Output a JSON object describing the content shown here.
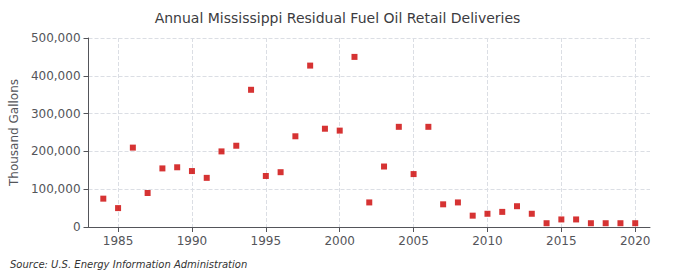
{
  "chart_data": {
    "type": "scatter",
    "title": "Annual Mississippi Residual Fuel Oil Retail Deliveries",
    "ylabel": "Thousand Gallons",
    "annotation": "Source: U.S. Energy Information Administration",
    "x": [
      1984,
      1985,
      1986,
      1987,
      1988,
      1989,
      1990,
      1991,
      1992,
      1993,
      1994,
      1995,
      1996,
      1997,
      1998,
      1999,
      2000,
      2001,
      2002,
      2003,
      2004,
      2005,
      2006,
      2007,
      2008,
      2009,
      2010,
      2011,
      2012,
      2013,
      2014,
      2015,
      2016,
      2017,
      2018,
      2019,
      2020
    ],
    "values": [
      75000,
      50000,
      210000,
      90000,
      155000,
      158000,
      148000,
      130000,
      200000,
      215000,
      363000,
      135000,
      145000,
      240000,
      427000,
      260000,
      255000,
      450000,
      65000,
      160000,
      265000,
      140000,
      265000,
      60000,
      65000,
      30000,
      35000,
      40000,
      55000,
      35000,
      10000,
      20000,
      20000,
      10000,
      10000,
      10000,
      10000
    ],
    "color": "#cc0000",
    "marker": "square",
    "xlim": [
      1983,
      2021
    ],
    "xticks": [
      1985,
      1990,
      1995,
      2000,
      2005,
      2010,
      2015,
      2020
    ],
    "ylim": [
      0,
      500000
    ],
    "yticks": [
      0,
      {
        "value": 100000,
        "label": "100,000"
      },
      {
        "value": 200000,
        "label": "200,000"
      },
      {
        "value": 300000,
        "label": "300,000"
      },
      {
        "value": 400000,
        "label": "400,000"
      },
      {
        "value": 500000,
        "label": "500,000"
      }
    ],
    "grid": true
  }
}
